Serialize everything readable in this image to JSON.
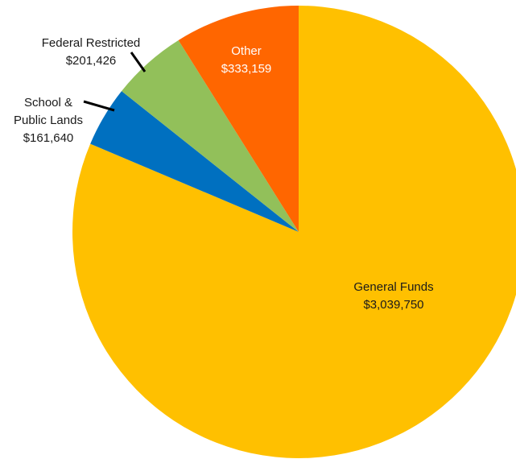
{
  "chart_data": {
    "type": "pie",
    "title": "",
    "start_angle_deg": 0,
    "direction": "clockwise",
    "slices": [
      {
        "label_lines": [
          "General Funds",
          "$3,039,750"
        ],
        "value": 3039750,
        "color": "#FFC000",
        "label_style": "dark"
      },
      {
        "label_lines": [
          "School &",
          "Public Lands",
          "$161,640"
        ],
        "value": 161640,
        "color": "#0070C0",
        "label_style": "dark"
      },
      {
        "label_lines": [
          "Federal Restricted",
          "$201,426"
        ],
        "value": 201426,
        "color": "#92C05A",
        "label_style": "dark"
      },
      {
        "label_lines": [
          "Other",
          "$333,159"
        ],
        "value": 333159,
        "color": "#FF6600",
        "label_style": "light"
      }
    ],
    "legend": "none"
  }
}
